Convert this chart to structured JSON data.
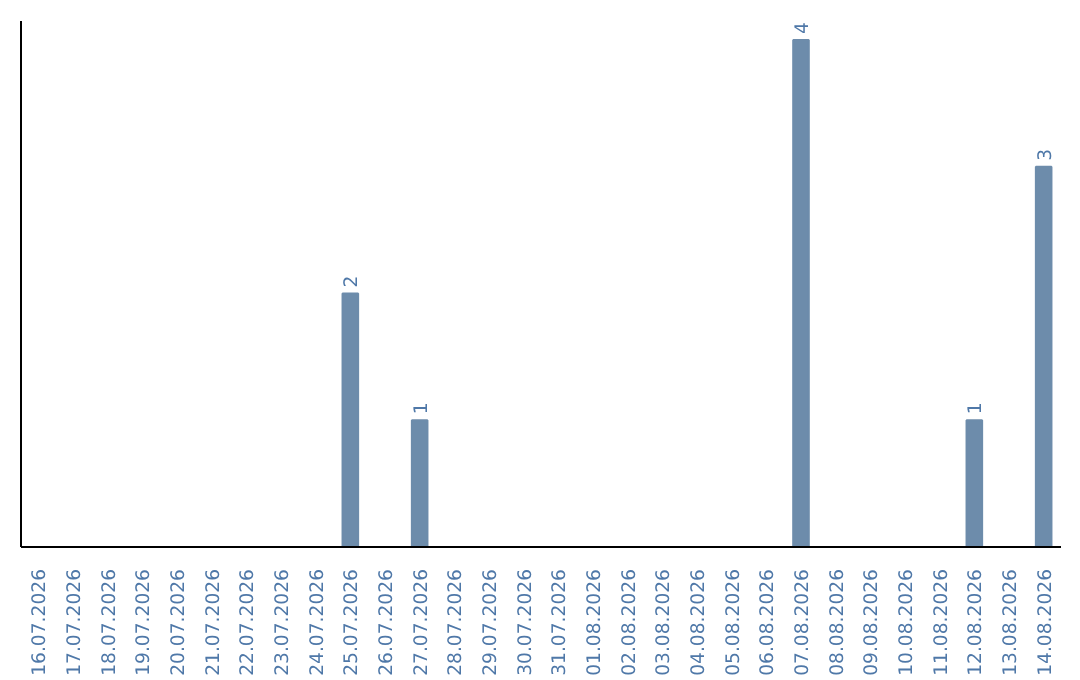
{
  "chart_data": {
    "type": "bar",
    "categories": [
      "16.07.2026",
      "17.07.2026",
      "18.07.2026",
      "19.07.2026",
      "20.07.2026",
      "21.07.2026",
      "22.07.2026",
      "23.07.2026",
      "24.07.2026",
      "25.07.2026",
      "26.07.2026",
      "27.07.2026",
      "28.07.2026",
      "29.07.2026",
      "30.07.2026",
      "31.07.2026",
      "01.08.2026",
      "02.08.2026",
      "03.08.2026",
      "04.08.2026",
      "05.08.2026",
      "06.08.2026",
      "07.08.2026",
      "08.08.2026",
      "09.08.2026",
      "10.08.2026",
      "11.08.2026",
      "12.08.2026",
      "13.08.2026",
      "14.08.2026"
    ],
    "values": [
      0,
      0,
      0,
      0,
      0,
      0,
      0,
      0,
      0,
      2,
      0,
      1,
      0,
      0,
      0,
      0,
      0,
      0,
      0,
      0,
      0,
      0,
      4,
      0,
      0,
      0,
      0,
      1,
      0,
      3
    ],
    "value_labels": [
      null,
      null,
      null,
      null,
      null,
      null,
      null,
      null,
      null,
      "2",
      null,
      "1",
      null,
      null,
      null,
      null,
      null,
      null,
      null,
      null,
      null,
      null,
      "4",
      null,
      null,
      null,
      null,
      "1",
      null,
      "3"
    ],
    "color": "#6d8cab",
    "ylim": [
      0,
      4.15
    ],
    "tick_labels": "x",
    "grid": false
  }
}
